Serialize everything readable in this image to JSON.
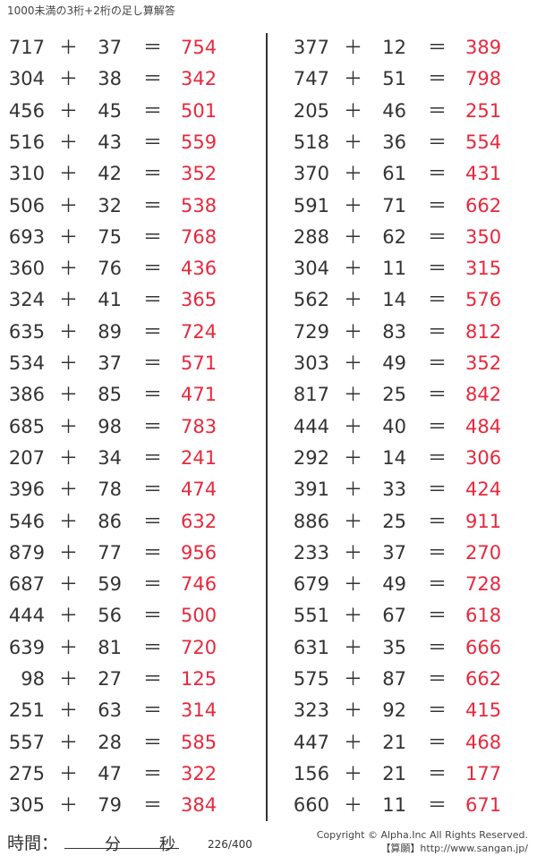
{
  "title": "1000未満の3桁+2桁の足し算解答",
  "answer_color": "#e8283c",
  "plus": "＋",
  "equals": "＝",
  "left": [
    [
      717,
      37,
      754
    ],
    [
      304,
      38,
      342
    ],
    [
      456,
      45,
      501
    ],
    [
      516,
      43,
      559
    ],
    [
      310,
      42,
      352
    ],
    [
      506,
      32,
      538
    ],
    [
      693,
      75,
      768
    ],
    [
      360,
      76,
      436
    ],
    [
      324,
      41,
      365
    ],
    [
      635,
      89,
      724
    ],
    [
      534,
      37,
      571
    ],
    [
      386,
      85,
      471
    ],
    [
      685,
      98,
      783
    ],
    [
      207,
      34,
      241
    ],
    [
      396,
      78,
      474
    ],
    [
      546,
      86,
      632
    ],
    [
      879,
      77,
      956
    ],
    [
      687,
      59,
      746
    ],
    [
      444,
      56,
      500
    ],
    [
      639,
      81,
      720
    ],
    [
      98,
      27,
      125
    ],
    [
      251,
      63,
      314
    ],
    [
      557,
      28,
      585
    ],
    [
      275,
      47,
      322
    ],
    [
      305,
      79,
      384
    ]
  ],
  "right": [
    [
      377,
      12,
      389
    ],
    [
      747,
      51,
      798
    ],
    [
      205,
      46,
      251
    ],
    [
      518,
      36,
      554
    ],
    [
      370,
      61,
      431
    ],
    [
      591,
      71,
      662
    ],
    [
      288,
      62,
      350
    ],
    [
      304,
      11,
      315
    ],
    [
      562,
      14,
      576
    ],
    [
      729,
      83,
      812
    ],
    [
      303,
      49,
      352
    ],
    [
      817,
      25,
      842
    ],
    [
      444,
      40,
      484
    ],
    [
      292,
      14,
      306
    ],
    [
      391,
      33,
      424
    ],
    [
      886,
      25,
      911
    ],
    [
      233,
      37,
      270
    ],
    [
      679,
      49,
      728
    ],
    [
      551,
      67,
      618
    ],
    [
      631,
      35,
      666
    ],
    [
      575,
      87,
      662
    ],
    [
      323,
      92,
      415
    ],
    [
      447,
      21,
      468
    ],
    [
      156,
      21,
      177
    ],
    [
      660,
      11,
      671
    ]
  ],
  "footer": {
    "time_label": "時間：",
    "minutes": "分",
    "seconds": "秒",
    "page": "226/400",
    "copyright": "Copyright © Alpha.Inc All Rights Reserved.",
    "site": "【算願】http://www.sangan.jp/"
  }
}
